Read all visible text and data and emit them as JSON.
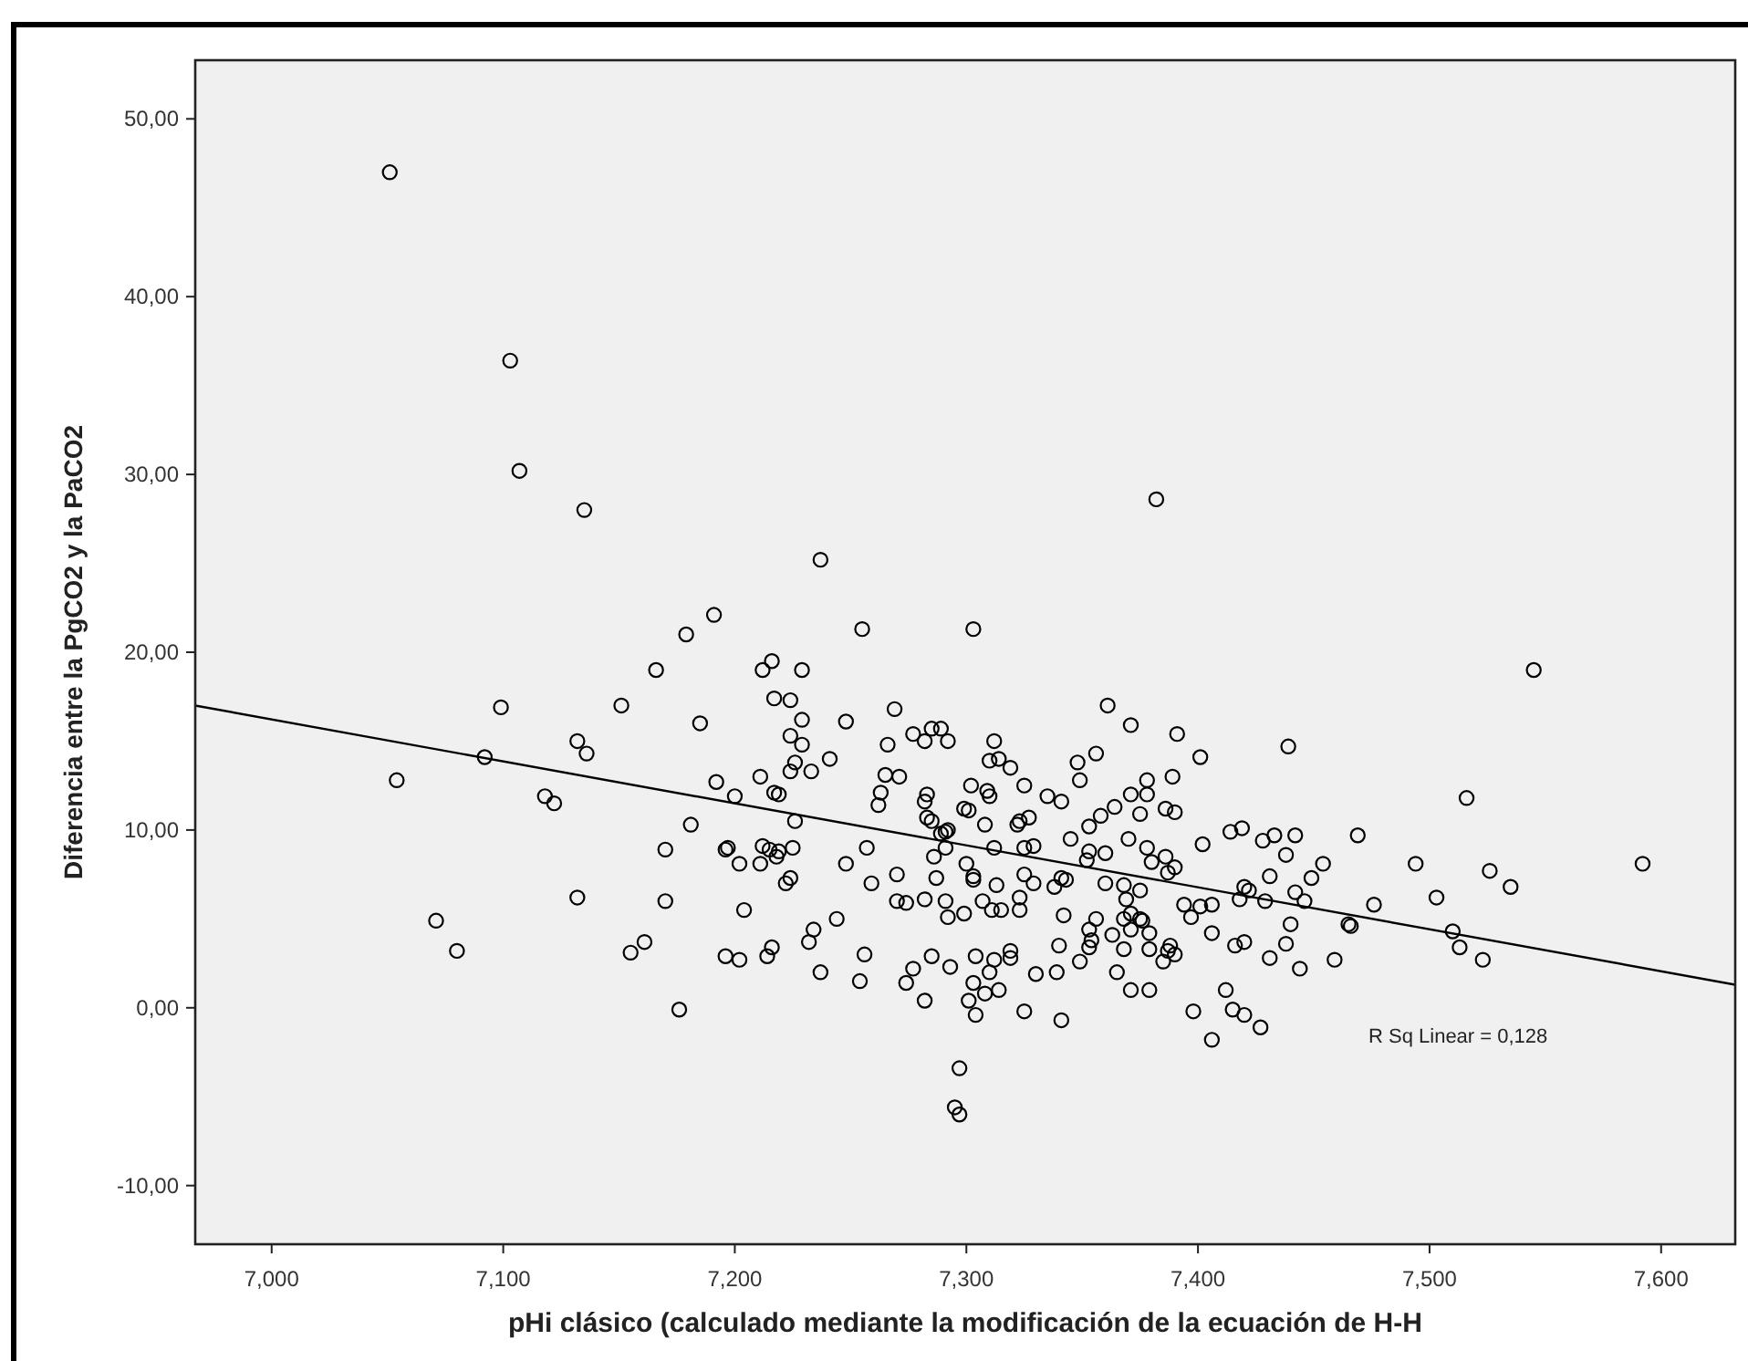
{
  "chart_data": {
    "type": "scatter",
    "xlabel": "pHi clásico (calculado mediante la modificación de la ecuación de H-H",
    "ylabel": "Diferencia entre la PgCO2 y la PaCO2",
    "annotations": [
      "R Sq Linear = 0,128"
    ],
    "xlim": [
      6.967,
      7.632
    ],
    "ylim": [
      -13.3,
      53.3
    ],
    "xticks": [
      {
        "value": 7.0,
        "label": "7,000"
      },
      {
        "value": 7.1,
        "label": "7,100"
      },
      {
        "value": 7.2,
        "label": "7,200"
      },
      {
        "value": 7.3,
        "label": "7,300"
      },
      {
        "value": 7.4,
        "label": "7,400"
      },
      {
        "value": 7.5,
        "label": "7,500"
      },
      {
        "value": 7.6,
        "label": "7,600"
      }
    ],
    "yticks": [
      {
        "value": -10,
        "label": "-10,00"
      },
      {
        "value": 0,
        "label": "0,00"
      },
      {
        "value": 10,
        "label": "10,00"
      },
      {
        "value": 20,
        "label": "20,00"
      },
      {
        "value": 30,
        "label": "30,00"
      },
      {
        "value": 40,
        "label": "40,00"
      },
      {
        "value": 50,
        "label": "50,00"
      }
    ],
    "grid": false,
    "marker": "circle",
    "series": [
      {
        "color": "#000000",
        "x": [
          7.051,
          7.103,
          7.107,
          7.135,
          7.191,
          7.179,
          7.166,
          7.099,
          7.151,
          7.185,
          7.132,
          7.136,
          7.092,
          7.054,
          7.192,
          7.118,
          7.122,
          7.181,
          7.17,
          7.196,
          7.132,
          7.17,
          7.071,
          7.08,
          7.161,
          7.155,
          7.196,
          7.176,
          7.237,
          7.382,
          7.255,
          7.303,
          7.216,
          7.212,
          7.229,
          7.217,
          7.224,
          7.229,
          7.248,
          7.269,
          7.224,
          7.229,
          7.226,
          7.224,
          7.233,
          7.241,
          7.266,
          7.277,
          7.282,
          7.285,
          7.289,
          7.292,
          7.265,
          7.271,
          7.312,
          7.31,
          7.314,
          7.319,
          7.325,
          7.211,
          7.2,
          7.217,
          7.219,
          7.263,
          7.262,
          7.283,
          7.282,
          7.302,
          7.309,
          7.31,
          7.226,
          7.283,
          7.285,
          7.291,
          7.292,
          7.299,
          7.301,
          7.308,
          7.322,
          7.323,
          7.327,
          7.197,
          7.202,
          7.211,
          7.212,
          7.215,
          7.219,
          7.218,
          7.225,
          7.224,
          7.222,
          7.257,
          7.248,
          7.259,
          7.27,
          7.286,
          7.291,
          7.287,
          7.3,
          7.303,
          7.303,
          7.312,
          7.325,
          7.329,
          7.325,
          7.329,
          7.313,
          7.204,
          7.244,
          7.234,
          7.232,
          7.27,
          7.274,
          7.282,
          7.291,
          7.292,
          7.299,
          7.307,
          7.311,
          7.315,
          7.323,
          7.323,
          7.202,
          7.214,
          7.216,
          7.237,
          7.254,
          7.256,
          7.277,
          7.274,
          7.282,
          7.285,
          7.293,
          7.304,
          7.31,
          7.312,
          7.319,
          7.319,
          7.303,
          7.308,
          7.314,
          7.301,
          7.304,
          7.325,
          7.33,
          7.297,
          7.295,
          7.297,
          7.289,
          7.361,
          7.371,
          7.391,
          7.439,
          7.401,
          7.356,
          7.348,
          7.349,
          7.335,
          7.341,
          7.378,
          7.371,
          7.378,
          7.389,
          7.364,
          7.358,
          7.375,
          7.386,
          7.39,
          7.353,
          7.345,
          7.37,
          7.378,
          7.36,
          7.353,
          7.352,
          7.38,
          7.386,
          7.39,
          7.387,
          7.402,
          7.414,
          7.419,
          7.428,
          7.433,
          7.442,
          7.438,
          7.454,
          7.469,
          7.431,
          7.449,
          7.442,
          7.446,
          7.42,
          7.422,
          7.418,
          7.429,
          7.476,
          7.465,
          7.466,
          7.44,
          7.438,
          7.431,
          7.444,
          7.459,
          7.338,
          7.341,
          7.343,
          7.36,
          7.368,
          7.375,
          7.369,
          7.342,
          7.356,
          7.353,
          7.354,
          7.353,
          7.363,
          7.368,
          7.371,
          7.375,
          7.376,
          7.371,
          7.379,
          7.379,
          7.368,
          7.388,
          7.387,
          7.39,
          7.385,
          7.394,
          7.401,
          7.397,
          7.406,
          7.406,
          7.416,
          7.42,
          7.34,
          7.339,
          7.349,
          7.365,
          7.371,
          7.379,
          7.341,
          7.398,
          7.412,
          7.415,
          7.42,
          7.427,
          7.406,
          7.545,
          7.516,
          7.494,
          7.526,
          7.535,
          7.592,
          7.503,
          7.51,
          7.513,
          7.523
        ],
        "values": [
          47.0,
          36.4,
          30.2,
          28.0,
          22.1,
          21.0,
          19.0,
          16.9,
          17.0,
          16.0,
          15.0,
          14.3,
          14.1,
          12.8,
          12.7,
          11.9,
          11.5,
          10.3,
          8.9,
          8.9,
          6.2,
          6.0,
          4.9,
          3.2,
          3.7,
          3.1,
          2.9,
          -0.1,
          25.2,
          28.6,
          21.3,
          21.3,
          19.5,
          19.0,
          19.0,
          17.4,
          17.3,
          16.2,
          16.1,
          16.8,
          15.3,
          14.8,
          13.8,
          13.3,
          13.3,
          14.0,
          14.8,
          15.4,
          15.0,
          15.7,
          15.7,
          15.0,
          13.1,
          13.0,
          15.0,
          13.9,
          14.0,
          13.5,
          12.5,
          13.0,
          11.9,
          12.1,
          12.0,
          12.1,
          11.4,
          12.0,
          11.6,
          12.5,
          12.2,
          11.9,
          10.5,
          10.7,
          10.5,
          9.9,
          10.0,
          11.2,
          11.1,
          10.3,
          10.3,
          10.5,
          10.7,
          9.0,
          8.1,
          8.1,
          9.1,
          8.9,
          8.8,
          8.5,
          9.0,
          7.3,
          7.0,
          9.0,
          8.1,
          7.0,
          7.5,
          8.5,
          9.0,
          7.3,
          8.1,
          7.4,
          7.2,
          9.0,
          9.0,
          9.1,
          7.5,
          7.0,
          6.9,
          5.5,
          5.0,
          4.4,
          3.7,
          6.0,
          5.9,
          6.1,
          6.0,
          5.1,
          5.3,
          6.0,
          5.5,
          5.5,
          6.2,
          5.5,
          2.7,
          2.9,
          3.4,
          2.0,
          1.5,
          3.0,
          2.2,
          1.4,
          0.4,
          2.9,
          2.3,
          2.9,
          2.0,
          2.7,
          3.2,
          2.8,
          1.4,
          0.8,
          1.0,
          0.4,
          -0.4,
          -0.2,
          1.9,
          -3.4,
          -5.6,
          -6.0,
          9.8,
          17.0,
          15.9,
          15.4,
          14.7,
          14.1,
          14.3,
          13.8,
          12.8,
          11.9,
          11.6,
          12.8,
          12.0,
          12.0,
          13.0,
          11.3,
          10.8,
          10.9,
          11.2,
          11.0,
          10.2,
          9.5,
          9.5,
          9.0,
          8.7,
          8.8,
          8.3,
          8.2,
          8.5,
          7.9,
          7.6,
          9.2,
          9.9,
          10.1,
          9.4,
          9.7,
          9.7,
          8.6,
          8.1,
          9.7,
          7.4,
          7.3,
          6.5,
          6.0,
          6.8,
          6.6,
          6.1,
          6.0,
          5.8,
          4.7,
          4.6,
          4.7,
          3.6,
          2.8,
          2.2,
          2.7,
          6.8,
          7.3,
          7.2,
          7.0,
          6.9,
          6.6,
          6.1,
          5.2,
          5.0,
          4.4,
          3.8,
          3.4,
          4.1,
          5.0,
          5.3,
          5.0,
          4.9,
          4.4,
          4.2,
          3.3,
          3.3,
          3.5,
          3.2,
          3.0,
          2.6,
          5.8,
          5.7,
          5.1,
          5.8,
          4.2,
          3.5,
          3.7,
          3.5,
          2.0,
          2.6,
          2.0,
          1.0,
          1.0,
          -0.7,
          -0.2,
          1.0,
          -0.1,
          -0.4,
          -1.1,
          -1.8,
          19.0,
          11.8,
          8.1,
          7.7,
          6.8,
          8.1,
          6.2,
          4.3,
          3.4,
          2.7
        ]
      },
      {
        "type": "line",
        "color": "#000000",
        "marker": "none",
        "x": [
          6.967,
          7.632
        ],
        "values": [
          17.0,
          1.3
        ]
      }
    ]
  }
}
